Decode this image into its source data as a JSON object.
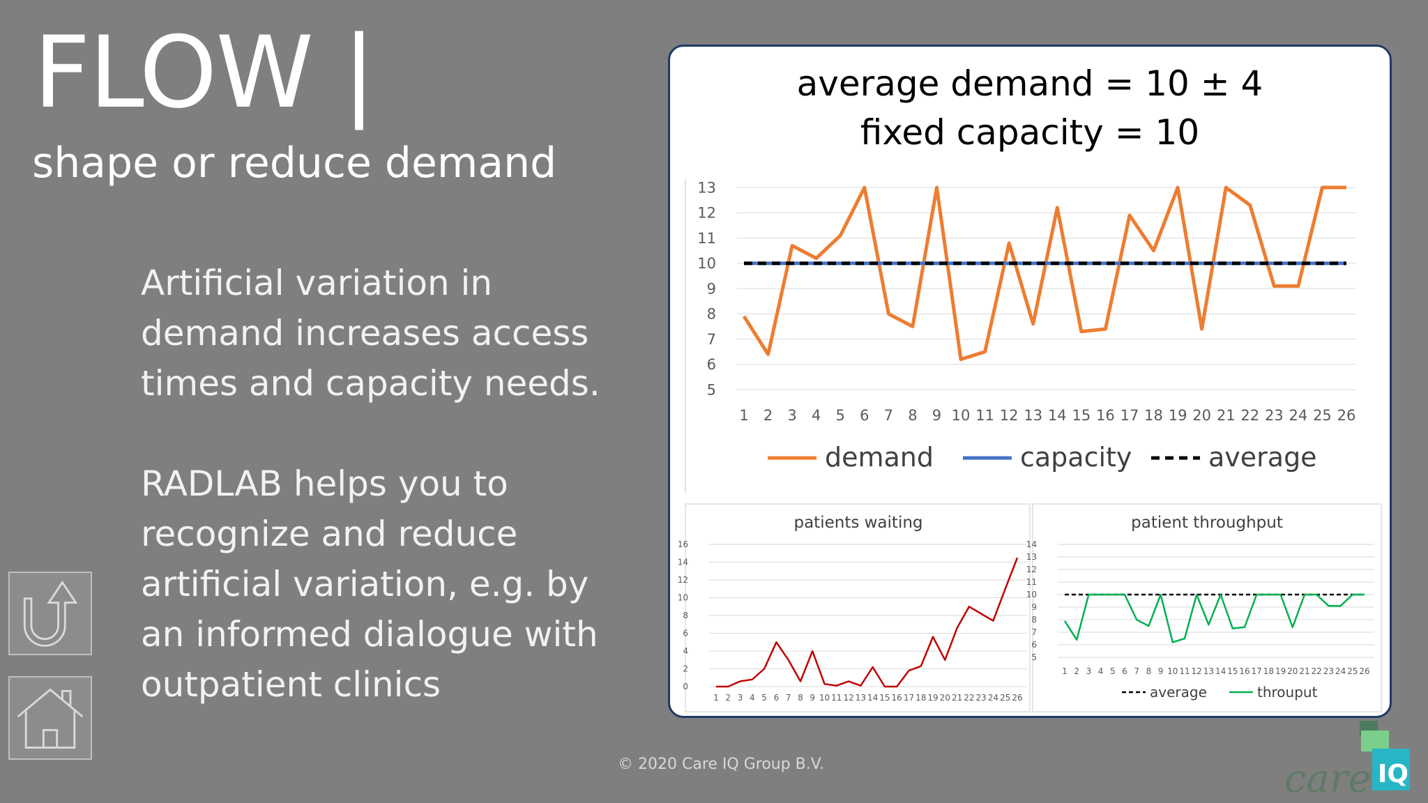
{
  "slide": {
    "title": "FLOW |",
    "subtitle": "shape or reduce demand",
    "paragraph1": "Artificial variation in demand increases access times and capacity needs.",
    "paragraph2": "RADLAB helps you to recognize and reduce artificial variation, e.g.  by an informed dialogue with outpatient clinics",
    "copyright": "© 2020 Care IQ Group B.V."
  },
  "nav": {
    "back_icon": "u-turn-arrow-icon",
    "home_icon": "house-icon"
  },
  "logo": {
    "text_care": "care",
    "text_iq": "IQ"
  },
  "colors": {
    "demand": "#ed7d31",
    "capacity": "#4472c4",
    "waiting": "#c00000",
    "throughput": "#00b050",
    "average": "#000000"
  },
  "chart_data": [
    {
      "type": "line",
      "title": "average demand = 10 ± 4",
      "subtitle": "fixed capacity = 10",
      "x": [
        1,
        2,
        3,
        4,
        5,
        6,
        7,
        8,
        9,
        10,
        11,
        12,
        13,
        14,
        15,
        16,
        17,
        18,
        19,
        20,
        21,
        22,
        23,
        24,
        25,
        26
      ],
      "ylim": [
        5,
        13
      ],
      "yticks": [
        5,
        6,
        7,
        8,
        9,
        10,
        11,
        12,
        13
      ],
      "grid": true,
      "legend": "bottom",
      "series": [
        {
          "name": "demand",
          "values": [
            7.9,
            6.4,
            10.7,
            10.2,
            11.1,
            13.0,
            8.0,
            7.5,
            13.3,
            6.2,
            6.5,
            10.8,
            7.6,
            12.2,
            7.3,
            7.4,
            11.9,
            10.5,
            13.3,
            7.4,
            13.5,
            12.3,
            9.1,
            9.1,
            13.5,
            13.5
          ]
        },
        {
          "name": "capacity",
          "values": [
            10,
            10,
            10,
            10,
            10,
            10,
            10,
            10,
            10,
            10,
            10,
            10,
            10,
            10,
            10,
            10,
            10,
            10,
            10,
            10,
            10,
            10,
            10,
            10,
            10,
            10
          ]
        },
        {
          "name": "average",
          "values": [
            10,
            10,
            10,
            10,
            10,
            10,
            10,
            10,
            10,
            10,
            10,
            10,
            10,
            10,
            10,
            10,
            10,
            10,
            10,
            10,
            10,
            10,
            10,
            10,
            10,
            10
          ]
        }
      ]
    },
    {
      "type": "line",
      "title": "patients waiting",
      "x": [
        1,
        2,
        3,
        4,
        5,
        6,
        7,
        8,
        9,
        10,
        11,
        12,
        13,
        14,
        15,
        16,
        17,
        18,
        19,
        20,
        21,
        22,
        23,
        24,
        25,
        26
      ],
      "ylim": [
        0,
        16
      ],
      "yticks": [
        0,
        2,
        4,
        6,
        8,
        10,
        12,
        14,
        16
      ],
      "grid": true,
      "series": [
        {
          "values": [
            0,
            0,
            0.6,
            0.8,
            2,
            5,
            3,
            0.6,
            4,
            0.3,
            0.1,
            0.6,
            0.1,
            2.2,
            0,
            0,
            1.8,
            2.3,
            5.6,
            3,
            6.6,
            9,
            8.2,
            7.4,
            11,
            14.5
          ]
        }
      ]
    },
    {
      "type": "line",
      "title": "patient throughput",
      "x": [
        1,
        2,
        3,
        4,
        5,
        6,
        7,
        8,
        9,
        10,
        11,
        12,
        13,
        14,
        15,
        16,
        17,
        18,
        19,
        20,
        21,
        22,
        23,
        24,
        25,
        26
      ],
      "ylim": [
        5,
        14
      ],
      "yticks": [
        5,
        6,
        7,
        8,
        9,
        10,
        11,
        12,
        13,
        14
      ],
      "grid": true,
      "legend": "bottom",
      "series": [
        {
          "name": "average",
          "values": [
            10,
            10,
            10,
            10,
            10,
            10,
            10,
            10,
            10,
            10,
            10,
            10,
            10,
            10,
            10,
            10,
            10,
            10,
            10,
            10,
            10,
            10,
            10,
            10,
            10,
            10
          ]
        },
        {
          "name": "throuput",
          "values": [
            7.9,
            6.4,
            10,
            10,
            10,
            10,
            8,
            7.5,
            10,
            6.2,
            6.5,
            10,
            7.6,
            10,
            7.3,
            7.4,
            10,
            10,
            10,
            7.4,
            10,
            10,
            9.1,
            9.1,
            10,
            10
          ]
        }
      ]
    }
  ]
}
